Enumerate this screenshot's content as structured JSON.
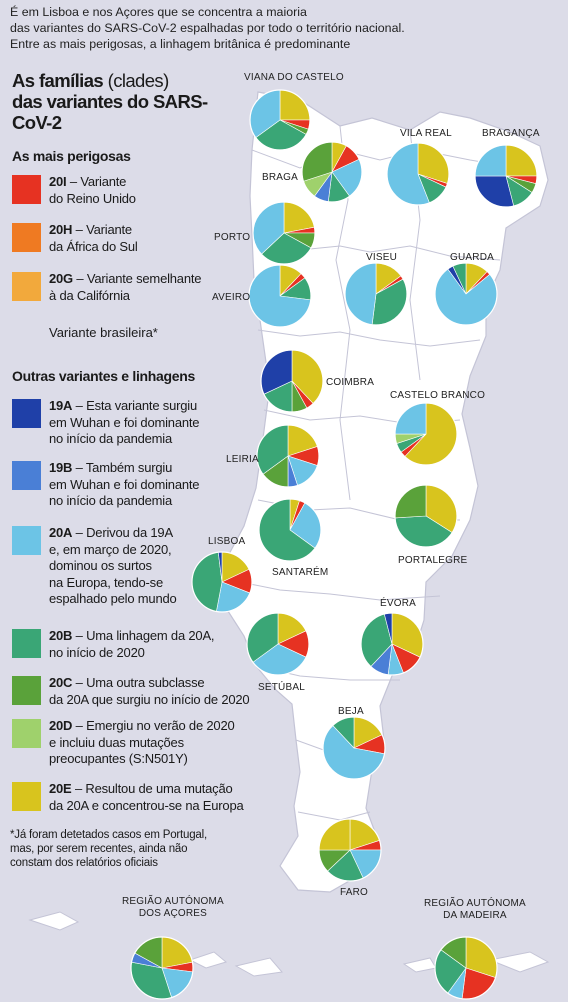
{
  "intro": {
    "line1": "É em Lisboa e nos Açores que se concentra a maioria",
    "line2": "das variantes do SARS-CoV-2 espalhadas por todo o território nacional.",
    "line3": "Entre as mais perigosas, a linhagem britânica é predominante"
  },
  "title": {
    "part1": "As famílias",
    "part2": "(clades)",
    "part3": "das variantes do SARS-CoV-2"
  },
  "sections": {
    "dangerous": "As mais perigosas",
    "others": "Outras variantes e linhagens"
  },
  "colors": {
    "20I": "#e63222",
    "20H": "#ef7a22",
    "20G": "#f2a93c",
    "19A": "#1f40a8",
    "19B": "#4a7fd6",
    "20A": "#6cc4e6",
    "20B": "#3aa676",
    "20C": "#5aa23a",
    "20D": "#9fd16c",
    "20E": "#d8c41e"
  },
  "legend": {
    "i20I": {
      "code": "20I",
      "text1": " – Variante",
      "text2": "do Reino Unido"
    },
    "i20H": {
      "code": "20H",
      "text1": " – Variante",
      "text2": "da África do Sul"
    },
    "i20G": {
      "code": "20G",
      "text1": " – Variante semelhante",
      "text2": "à da Califórnia"
    },
    "brazil": "Variante brasileira*",
    "i19A": {
      "code": "19A",
      "text1": " – Esta variante surgiu",
      "text2": "em Wuhan e foi dominante",
      "text3": "no início da pandemia"
    },
    "i19B": {
      "code": "19B",
      "text1": " – Também surgiu",
      "text2": "em Wuhan e foi dominante",
      "text3": "no início da pandemia"
    },
    "i20A": {
      "code": "20A",
      "text1": " – Derivou da 19A",
      "text2": "e, em março de 2020,",
      "text3": "dominou os surtos",
      "text4": "na Europa, tendo-se",
      "text5": "espalhado pelo mundo"
    },
    "i20B": {
      "code": "20B",
      "text1": " – Uma linhagem da 20A,",
      "text2": "no início de 2020"
    },
    "i20C": {
      "code": "20C",
      "text1": " – Uma outra subclasse",
      "text2": "da 20A que surgiu no início de 2020"
    },
    "i20D": {
      "code": "20D",
      "text1": " – Emergiu no verão de 2020",
      "text2": "e incluiu duas mutações",
      "text3": "preocupantes (S:N501Y)"
    },
    "i20E": {
      "code": "20E",
      "text1": " – Resultou de uma mutação",
      "text2": "da 20A e concentrou-se na Europa"
    }
  },
  "footnote": {
    "line1": "*Já foram detetados casos em Portugal,",
    "line2": "mas, por serem recentes, ainda não",
    "line3": "constam dos relatórios oficiais"
  },
  "regions": {
    "viana": "VIANA DO CASTELO",
    "braga": "BRAGA",
    "vilareal": "VILA REAL",
    "braganca": "BRAGANÇA",
    "porto": "PORTO",
    "aveiro": "AVEIRO",
    "viseu": "VISEU",
    "guarda": "GUARDA",
    "coimbra": "COIMBRA",
    "castelobranco": "CASTELO BRANCO",
    "leiria": "LEIRIA",
    "santarem": "SANTARÉM",
    "lisboa": "LISBOA",
    "portalegre": "PORTALEGRE",
    "evora": "ÉVORA",
    "setubal": "SETÚBAL",
    "beja": "BEJA",
    "faro": "FARO",
    "acores1": "REGIÃO AUTÓNOMA",
    "acores2": "DOS AÇORES",
    "madeira1": "REGIÃO AUTÓNOMA",
    "madeira2": "DA MADEIRA"
  },
  "pies": {
    "viana": [
      [
        "20E",
        0.25
      ],
      [
        "20I",
        0.05
      ],
      [
        "20C",
        0.03
      ],
      [
        "20B",
        0.32
      ],
      [
        "20A",
        0.35
      ]
    ],
    "braga": [
      [
        "20E",
        0.08
      ],
      [
        "20I",
        0.1
      ],
      [
        "20A",
        0.22
      ],
      [
        "20B",
        0.12
      ],
      [
        "19B",
        0.08
      ],
      [
        "20D",
        0.1
      ],
      [
        "20C",
        0.3
      ]
    ],
    "vilareal": [
      [
        "20E",
        0.3
      ],
      [
        "20I",
        0.02
      ],
      [
        "20B",
        0.12
      ],
      [
        "20A",
        0.56
      ]
    ],
    "braganca": [
      [
        "20E",
        0.25
      ],
      [
        "20I",
        0.04
      ],
      [
        "20C",
        0.05
      ],
      [
        "20B",
        0.12
      ],
      [
        "19A",
        0.29
      ],
      [
        "20A",
        0.25
      ]
    ],
    "porto": [
      [
        "20E",
        0.22
      ],
      [
        "20I",
        0.03
      ],
      [
        "20C",
        0.08
      ],
      [
        "20B",
        0.3
      ],
      [
        "20A",
        0.37
      ]
    ],
    "aveiro": [
      [
        "20E",
        0.12
      ],
      [
        "20I",
        0.03
      ],
      [
        "20B",
        0.12
      ],
      [
        "20A",
        0.73
      ]
    ],
    "viseu": [
      [
        "20E",
        0.15
      ],
      [
        "20I",
        0.02
      ],
      [
        "20B",
        0.35
      ],
      [
        "20A",
        0.48
      ]
    ],
    "guarda": [
      [
        "20E",
        0.12
      ],
      [
        "20I",
        0.02
      ],
      [
        "20A",
        0.76
      ],
      [
        "19A",
        0.03
      ],
      [
        "20B",
        0.07
      ]
    ],
    "coimbra": [
      [
        "20E",
        0.38
      ],
      [
        "20I",
        0.04
      ],
      [
        "20C",
        0.08
      ],
      [
        "20B",
        0.18
      ],
      [
        "19A",
        0.32
      ]
    ],
    "castelobranco": [
      [
        "20E",
        0.62
      ],
      [
        "20I",
        0.03
      ],
      [
        "20B",
        0.05
      ],
      [
        "20D",
        0.05
      ],
      [
        "20A",
        0.25
      ]
    ],
    "leiria": [
      [
        "20E",
        0.2
      ],
      [
        "20I",
        0.1
      ],
      [
        "20A",
        0.15
      ],
      [
        "19B",
        0.05
      ],
      [
        "20C",
        0.15
      ],
      [
        "20B",
        0.35
      ]
    ],
    "santarem": [
      [
        "20E",
        0.05
      ],
      [
        "20I",
        0.03
      ],
      [
        "20A",
        0.27
      ],
      [
        "20B",
        0.65
      ]
    ],
    "lisboa": [
      [
        "20E",
        0.18
      ],
      [
        "20I",
        0.13
      ],
      [
        "20A",
        0.22
      ],
      [
        "20B",
        0.45
      ],
      [
        "19A",
        0.02
      ]
    ],
    "portalegre": [
      [
        "20E",
        0.34
      ],
      [
        "20B",
        0.4
      ],
      [
        "20C",
        0.26
      ]
    ],
    "evora": [
      [
        "20E",
        0.32
      ],
      [
        "20I",
        0.12
      ],
      [
        "20A",
        0.08
      ],
      [
        "19B",
        0.1
      ],
      [
        "20B",
        0.34
      ],
      [
        "19A",
        0.04
      ]
    ],
    "setubal": [
      [
        "20E",
        0.18
      ],
      [
        "20I",
        0.14
      ],
      [
        "20A",
        0.33
      ],
      [
        "20B",
        0.35
      ]
    ],
    "beja": [
      [
        "20E",
        0.18
      ],
      [
        "20I",
        0.1
      ],
      [
        "20A",
        0.6
      ],
      [
        "20B",
        0.12
      ]
    ],
    "faro": [
      [
        "20E",
        0.2
      ],
      [
        "20I",
        0.05
      ],
      [
        "20A",
        0.18
      ],
      [
        "20B",
        0.2
      ],
      [
        "20C",
        0.12
      ],
      [
        "20E",
        0.25
      ]
    ],
    "acores": [
      [
        "20E",
        0.22
      ],
      [
        "20I",
        0.05
      ],
      [
        "20A",
        0.18
      ],
      [
        "20B",
        0.33
      ],
      [
        "19B",
        0.05
      ],
      [
        "20C",
        0.17
      ]
    ],
    "madeira": [
      [
        "20E",
        0.3
      ],
      [
        "20I",
        0.22
      ],
      [
        "20A",
        0.08
      ],
      [
        "20B",
        0.25
      ],
      [
        "20C",
        0.15
      ]
    ]
  }
}
